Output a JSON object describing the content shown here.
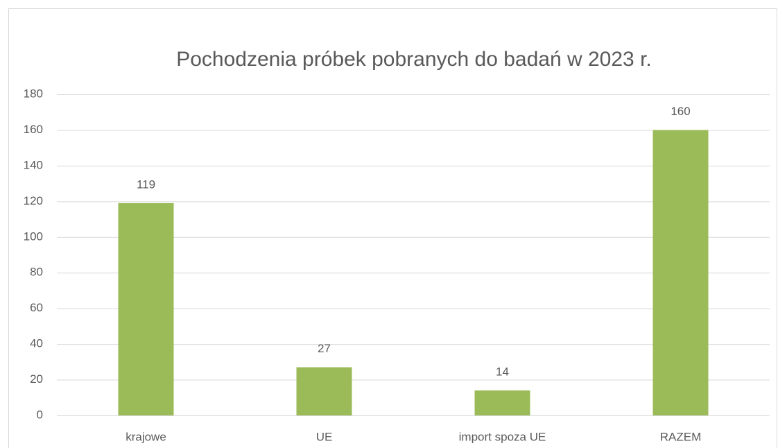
{
  "chart_data": {
    "type": "bar",
    "title": "Pochodzenia próbek pobranych do badań w 2023 r.",
    "categories": [
      "krajowe",
      "UE",
      "import spoza UE",
      "RAZEM"
    ],
    "values": [
      119,
      27,
      14,
      160
    ],
    "color": "#9bbb59",
    "ylim": [
      0,
      180
    ],
    "yticks": [
      0,
      20,
      40,
      60,
      80,
      100,
      120,
      140,
      160,
      180
    ],
    "grid": true
  }
}
